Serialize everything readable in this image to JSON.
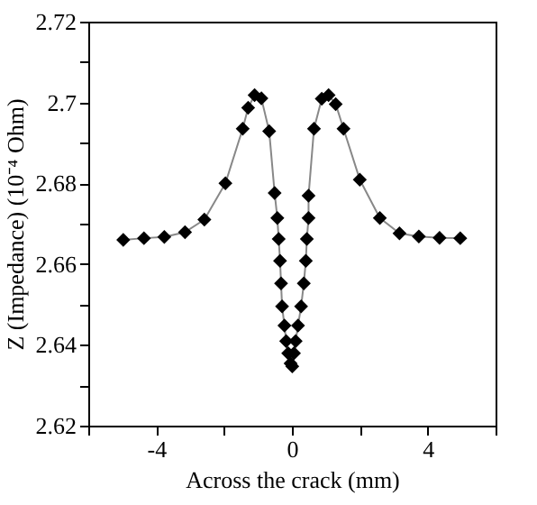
{
  "chart_data": {
    "type": "line",
    "xlabel": "Across the crack (mm)",
    "ylabel": "Z (Impedance) (10⁻⁴ Ohm)",
    "x": [
      -4.97,
      -4.36,
      -3.76,
      -3.15,
      -2.58,
      -1.96,
      -1.45,
      -1.29,
      -1.1,
      -0.9,
      -0.67,
      -0.51,
      -0.43,
      -0.39,
      -0.35,
      -0.32,
      -0.29,
      -0.22,
      -0.17,
      -0.11,
      -0.04,
      0.01,
      0.06,
      0.11,
      0.18,
      0.27,
      0.35,
      0.41,
      0.44,
      0.49,
      0.49,
      0.65,
      0.88,
      1.08,
      1.29,
      1.52,
      2.0,
      2.59,
      3.17,
      3.74,
      4.35,
      4.96
    ],
    "series": [
      {
        "color": "#000000",
        "values": [
          2.666,
          2.6664,
          2.6667,
          2.6679,
          2.671,
          2.68,
          2.6935,
          2.6987,
          2.7018,
          2.701,
          2.6929,
          2.6776,
          2.6714,
          2.6662,
          2.6608,
          2.6552,
          2.6495,
          2.6448,
          2.6409,
          2.6379,
          2.6354,
          2.6347,
          2.6379,
          2.6409,
          2.6448,
          2.6495,
          2.6552,
          2.6608,
          2.6662,
          2.6714,
          2.6769,
          2.6935,
          2.7009,
          2.7018,
          2.6996,
          2.6935,
          2.6809,
          2.6714,
          2.6676,
          2.6668,
          2.6665,
          2.6664
        ]
      }
    ],
    "xlim": [
      -6,
      6
    ],
    "xticks": [
      {
        "value": -6,
        "label": null
      },
      -4,
      {
        "value": -2,
        "label": null
      },
      0,
      {
        "value": 2,
        "label": null
      },
      4,
      {
        "value": 6,
        "label": null
      }
    ],
    "ylim": [
      2.62,
      2.72
    ],
    "yticks": [
      2.62,
      {
        "value": 2.63,
        "label": null
      },
      2.64,
      {
        "value": 2.65,
        "label": null
      },
      2.66,
      {
        "value": 2.67,
        "label": null
      },
      2.68,
      {
        "value": 2.69,
        "label": null
      },
      2.7,
      {
        "value": 2.71,
        "label": null
      },
      2.72
    ],
    "marker": "diamond",
    "line_style": "solid",
    "grid": false
  }
}
